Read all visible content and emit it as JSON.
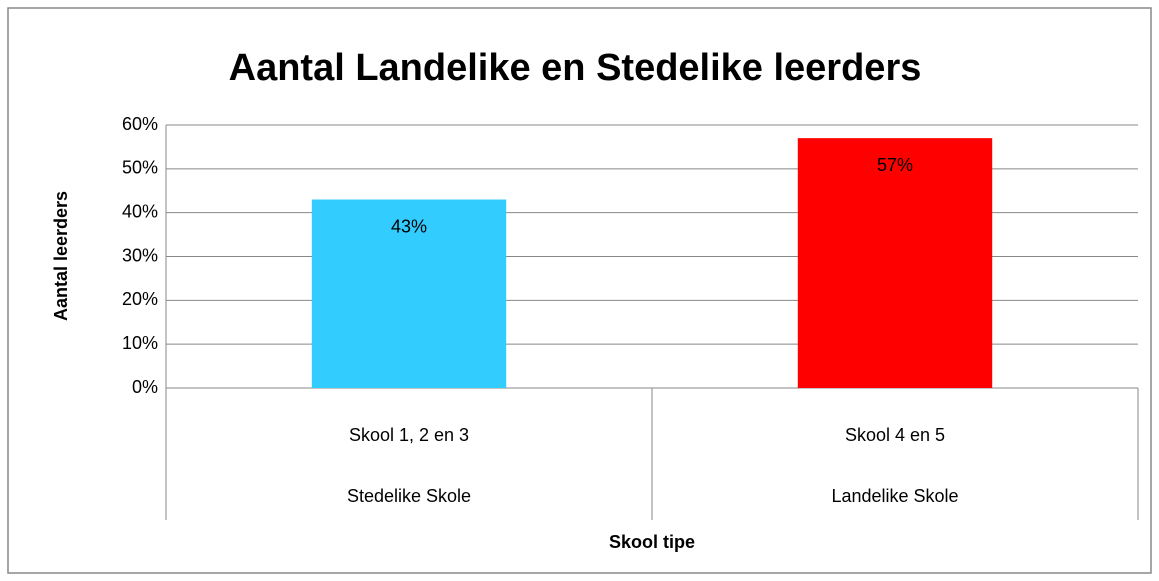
{
  "chart_data": {
    "type": "bar",
    "title": "Aantal Landelike en Stedelike leerders",
    "x_label": "Skool tipe",
    "y_label": "Aantal leerders",
    "categories": [
      "Skool 1, 2 en 3",
      "Skool 4 en 5"
    ],
    "category_groups": [
      "Stedelike Skole",
      "Landelike Skole"
    ],
    "values": [
      43,
      57
    ],
    "value_labels": [
      "43%",
      "57%"
    ],
    "colors": [
      "#33ccff",
      "#ff0000"
    ],
    "ylim": [
      0,
      60
    ],
    "yticks": [
      {
        "value": 0,
        "label": "0%"
      },
      {
        "value": 10,
        "label": "10%"
      },
      {
        "value": 20,
        "label": "20%"
      },
      {
        "value": 30,
        "label": "30%"
      },
      {
        "value": 40,
        "label": "40%"
      },
      {
        "value": 50,
        "label": "50%"
      },
      {
        "value": 60,
        "label": "60%"
      }
    ],
    "grid": true
  }
}
